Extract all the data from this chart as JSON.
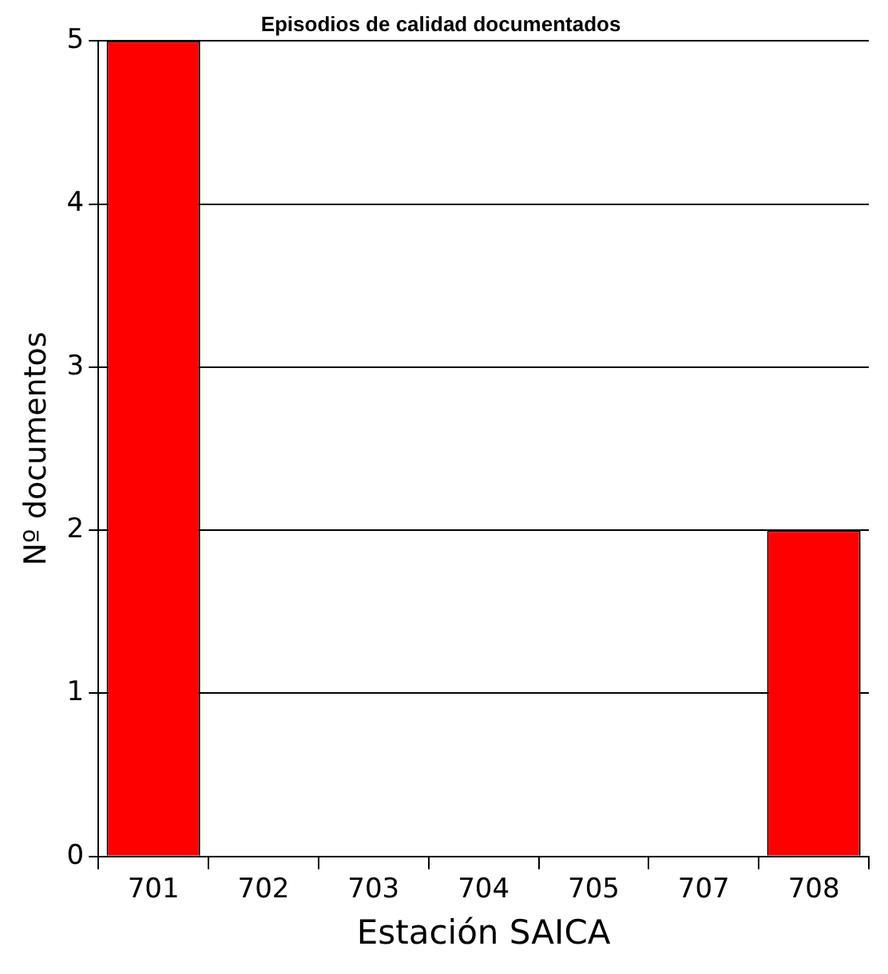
{
  "chart_data": {
    "type": "bar",
    "title": "Episodios de calidad documentados",
    "xlabel": "Estación SAICA",
    "ylabel": "Nº documentos",
    "categories": [
      "701",
      "702",
      "703",
      "704",
      "705",
      "707",
      "708"
    ],
    "values": [
      5,
      0,
      0,
      0,
      0,
      0,
      2
    ],
    "color": "#ff0000",
    "ylim": [
      0,
      5
    ],
    "yticks": [
      0,
      1,
      2,
      3,
      4,
      5
    ],
    "grid": "y",
    "legend": false
  }
}
